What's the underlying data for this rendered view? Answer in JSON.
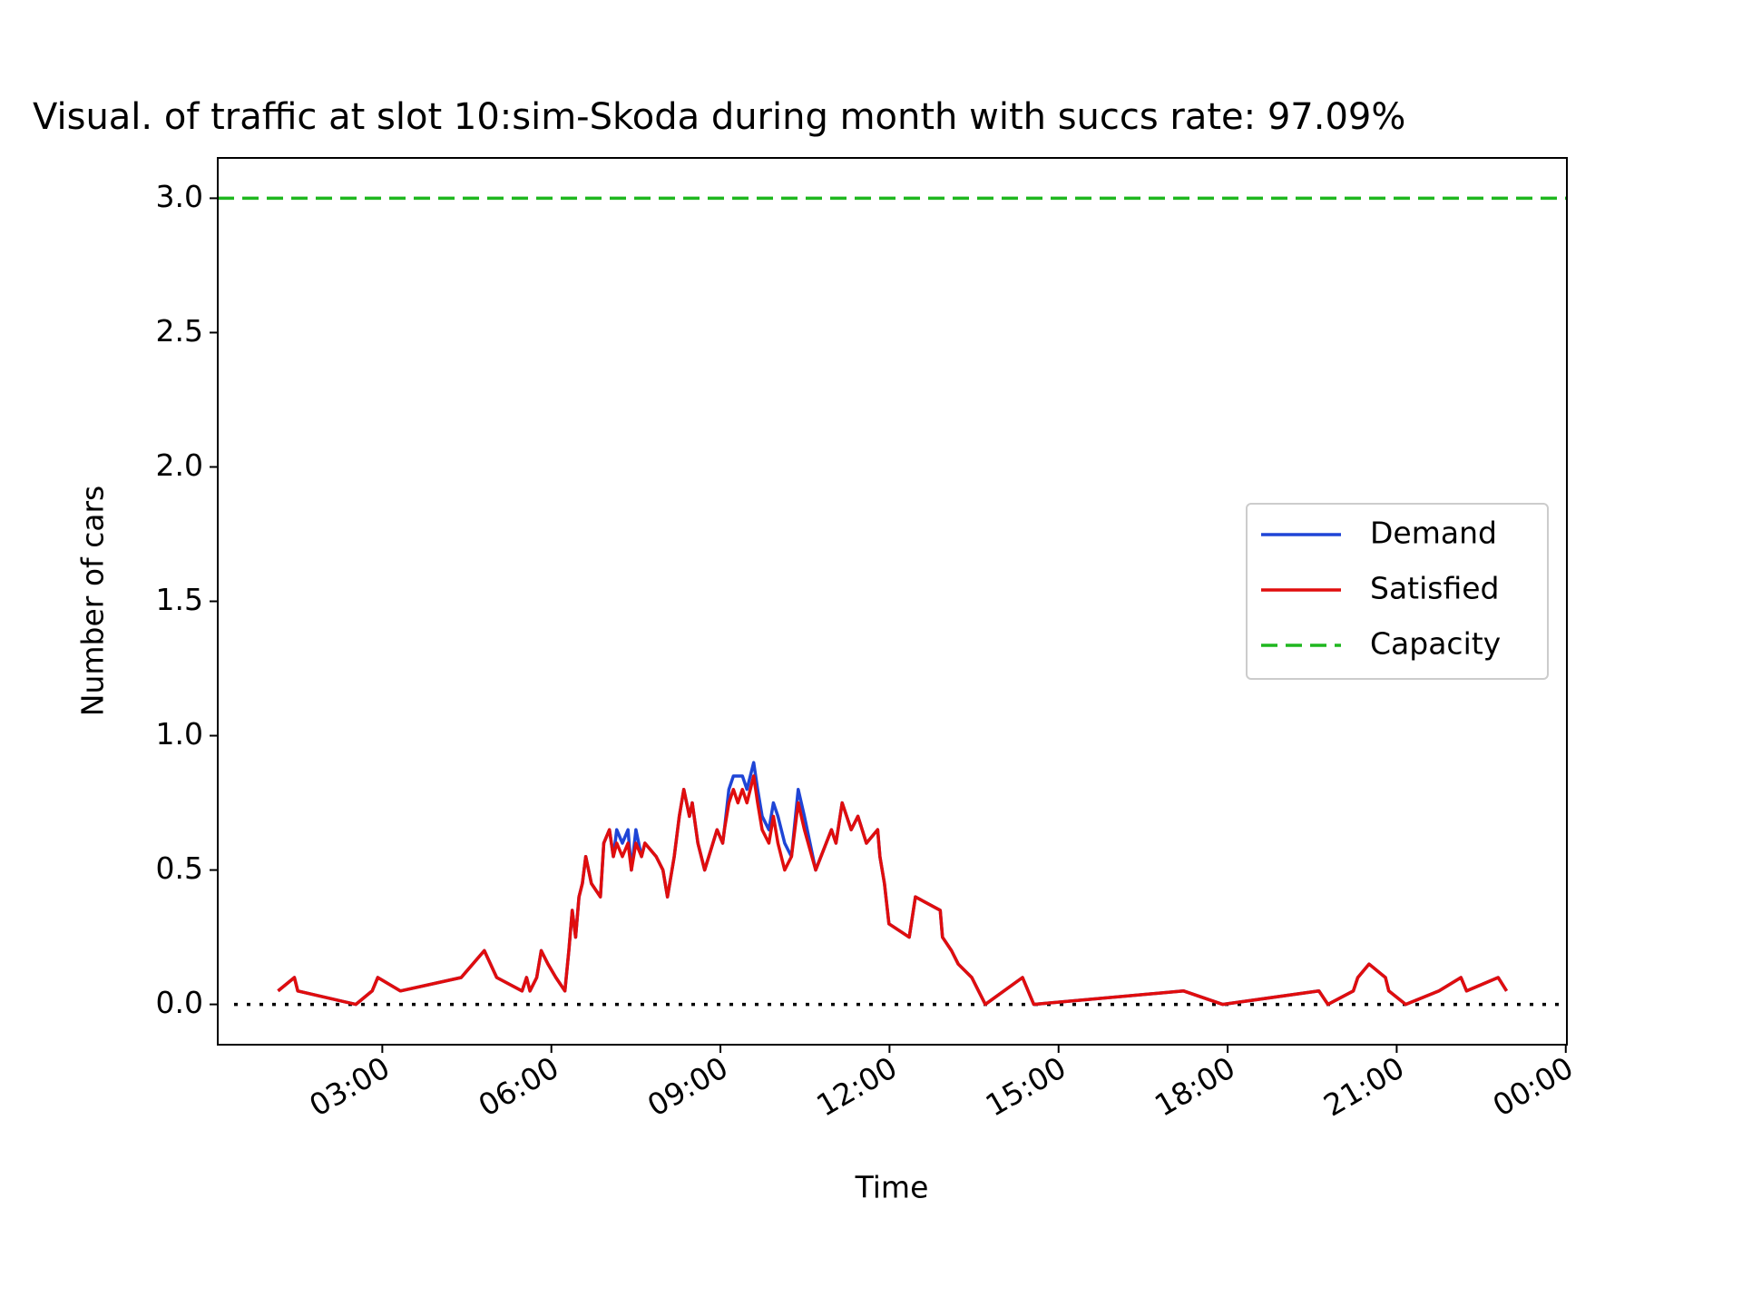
{
  "chart_data": {
    "type": "line",
    "title": "Visual. of traffic at slot 10:sim-Skoda during month with succs rate: 97.09%",
    "xlabel": "Time",
    "ylabel": "Number of cars",
    "x": [
      1.15,
      1.44,
      1.5,
      2.53,
      2.82,
      2.92,
      3.32,
      4.4,
      4.81,
      5.03,
      5.48,
      5.56,
      5.62,
      5.74,
      5.82,
      5.94,
      6.08,
      6.24,
      6.31,
      6.37,
      6.43,
      6.49,
      6.55,
      6.61,
      6.71,
      6.87,
      6.93,
      7.03,
      7.1,
      7.16,
      7.26,
      7.36,
      7.42,
      7.5,
      7.6,
      7.66,
      7.86,
      7.98,
      8.02,
      8.06,
      8.18,
      8.21,
      8.27,
      8.35,
      8.45,
      8.5,
      8.6,
      8.72,
      8.94,
      9.04,
      9.07,
      9.15,
      9.23,
      9.31,
      9.39,
      9.47,
      9.59,
      9.66,
      9.74,
      9.86,
      9.94,
      10.02,
      10.14,
      10.26,
      10.38,
      10.49,
      10.69,
      10.97,
      11.05,
      11.16,
      11.32,
      11.44,
      11.59,
      11.79,
      11.83,
      11.91,
      11.99,
      12.35,
      12.46,
      12.9,
      12.94,
      13.1,
      13.22,
      13.46,
      13.58,
      13.7,
      14.36,
      14.56,
      17.22,
      17.91,
      19.62,
      19.78,
      20.23,
      20.31,
      20.51,
      20.8,
      20.86,
      21.16,
      21.75,
      22.14,
      22.24,
      22.8,
      22.95
    ],
    "series": [
      {
        "name": "Demand",
        "color": "#1f45d6",
        "values": [
          0.05,
          0.1,
          0.05,
          0,
          0.05,
          0.1,
          0.05,
          0.1,
          0.2,
          0.1,
          0.05,
          0.1,
          0.05,
          0.1,
          0.2,
          0.15,
          0.1,
          0.05,
          0.2,
          0.35,
          0.25,
          0.4,
          0.45,
          0.55,
          0.45,
          0.4,
          0.6,
          0.65,
          0.55,
          0.65,
          0.6,
          0.65,
          0.5,
          0.65,
          0.55,
          0.6,
          0.55,
          0.5,
          0.45,
          0.4,
          0.55,
          0.6,
          0.7,
          0.8,
          0.7,
          0.75,
          0.6,
          0.5,
          0.65,
          0.6,
          0.65,
          0.8,
          0.85,
          0.85,
          0.85,
          0.8,
          0.9,
          0.8,
          0.7,
          0.65,
          0.75,
          0.7,
          0.6,
          0.55,
          0.8,
          0.7,
          0.5,
          0.65,
          0.6,
          0.75,
          0.65,
          0.7,
          0.6,
          0.65,
          0.55,
          0.45,
          0.3,
          0.25,
          0.4,
          0.35,
          0.25,
          0.2,
          0.15,
          0.1,
          0.05,
          0,
          0.1,
          0,
          0.05,
          0,
          0.05,
          0,
          0.05,
          0.1,
          0.15,
          0.1,
          0.05,
          0,
          0.05,
          0.1,
          0.05,
          0.1,
          0.05
        ]
      },
      {
        "name": "Satisfied",
        "color": "#e00d0d",
        "values": [
          0.05,
          0.1,
          0.05,
          0,
          0.05,
          0.1,
          0.05,
          0.1,
          0.2,
          0.1,
          0.05,
          0.1,
          0.05,
          0.1,
          0.2,
          0.15,
          0.1,
          0.05,
          0.2,
          0.35,
          0.25,
          0.4,
          0.45,
          0.55,
          0.45,
          0.4,
          0.6,
          0.65,
          0.55,
          0.6,
          0.55,
          0.6,
          0.5,
          0.6,
          0.55,
          0.6,
          0.55,
          0.5,
          0.45,
          0.4,
          0.55,
          0.6,
          0.7,
          0.8,
          0.7,
          0.75,
          0.6,
          0.5,
          0.65,
          0.6,
          0.65,
          0.75,
          0.8,
          0.75,
          0.8,
          0.75,
          0.85,
          0.75,
          0.65,
          0.6,
          0.7,
          0.6,
          0.5,
          0.55,
          0.75,
          0.65,
          0.5,
          0.65,
          0.6,
          0.75,
          0.65,
          0.7,
          0.6,
          0.65,
          0.55,
          0.45,
          0.3,
          0.25,
          0.4,
          0.35,
          0.25,
          0.2,
          0.15,
          0.1,
          0.05,
          0,
          0.1,
          0,
          0.05,
          0,
          0.05,
          0,
          0.05,
          0.1,
          0.15,
          0.1,
          0.05,
          0,
          0.05,
          0.1,
          0.05,
          0.1,
          0.05
        ]
      },
      {
        "name": "Capacity",
        "color": "#1fb71f",
        "style": "dashed",
        "value": 3
      }
    ],
    "zero_line": {
      "value": 0,
      "color": "#000000",
      "style": "dotted"
    },
    "xlim": [
      0.08,
      24.02
    ],
    "xticks": [
      {
        "value": 3,
        "label": "03:00"
      },
      {
        "value": 6,
        "label": "06:00"
      },
      {
        "value": 9,
        "label": "09:00"
      },
      {
        "value": 12,
        "label": "12:00"
      },
      {
        "value": 15,
        "label": "15:00"
      },
      {
        "value": 18,
        "label": "18:00"
      },
      {
        "value": 21,
        "label": "21:00"
      },
      {
        "value": 24,
        "label": "00:00"
      }
    ],
    "ylim": [
      -0.15,
      3.15
    ],
    "yticks": [
      {
        "value": 0,
        "label": "0.0"
      },
      0.5,
      {
        "value": 1,
        "label": "1.0"
      },
      1.5,
      {
        "value": 2,
        "label": "2.0"
      },
      2.5,
      {
        "value": 3,
        "label": "3.0"
      }
    ],
    "legend": "center right"
  }
}
